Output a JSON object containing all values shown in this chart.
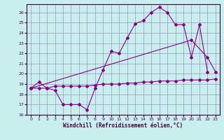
{
  "xlabel": "Windchill (Refroidissement éolien,°C)",
  "xlim": [
    -0.5,
    23.5
  ],
  "ylim": [
    16,
    26.8
  ],
  "yticks": [
    16,
    17,
    18,
    19,
    20,
    21,
    22,
    23,
    24,
    25,
    26
  ],
  "xticks": [
    0,
    1,
    2,
    3,
    4,
    5,
    6,
    7,
    8,
    9,
    10,
    11,
    12,
    13,
    14,
    15,
    16,
    17,
    18,
    19,
    20,
    21,
    22,
    23
  ],
  "background_color": "#c8eeee",
  "grid_color": "#9999bb",
  "line_color": "#880088",
  "series1_x": [
    0,
    1,
    2,
    3,
    4,
    5,
    6,
    7,
    8,
    9,
    10,
    11,
    12,
    13,
    14,
    15,
    16,
    17,
    18,
    19,
    20,
    21,
    22
  ],
  "series1_y": [
    18.6,
    19.2,
    18.6,
    18.4,
    17.0,
    17.0,
    17.0,
    16.5,
    18.6,
    20.4,
    22.2,
    22.0,
    23.5,
    24.9,
    25.2,
    26.0,
    26.5,
    26.0,
    24.8,
    24.8,
    21.6,
    24.8,
    20.2
  ],
  "series2_x": [
    0,
    1,
    2,
    3,
    4,
    5,
    6,
    7,
    8,
    9,
    10,
    11,
    12,
    13,
    14,
    15,
    16,
    17,
    18,
    19,
    20,
    21,
    22,
    23
  ],
  "series2_y": [
    18.6,
    18.6,
    18.6,
    18.8,
    18.8,
    18.8,
    18.8,
    18.8,
    18.9,
    19.0,
    19.0,
    19.0,
    19.1,
    19.1,
    19.2,
    19.2,
    19.3,
    19.3,
    19.3,
    19.4,
    19.4,
    19.4,
    19.4,
    19.5
  ],
  "series3_x": [
    0,
    20,
    22,
    23
  ],
  "series3_y": [
    18.6,
    23.3,
    21.6,
    20.2
  ]
}
